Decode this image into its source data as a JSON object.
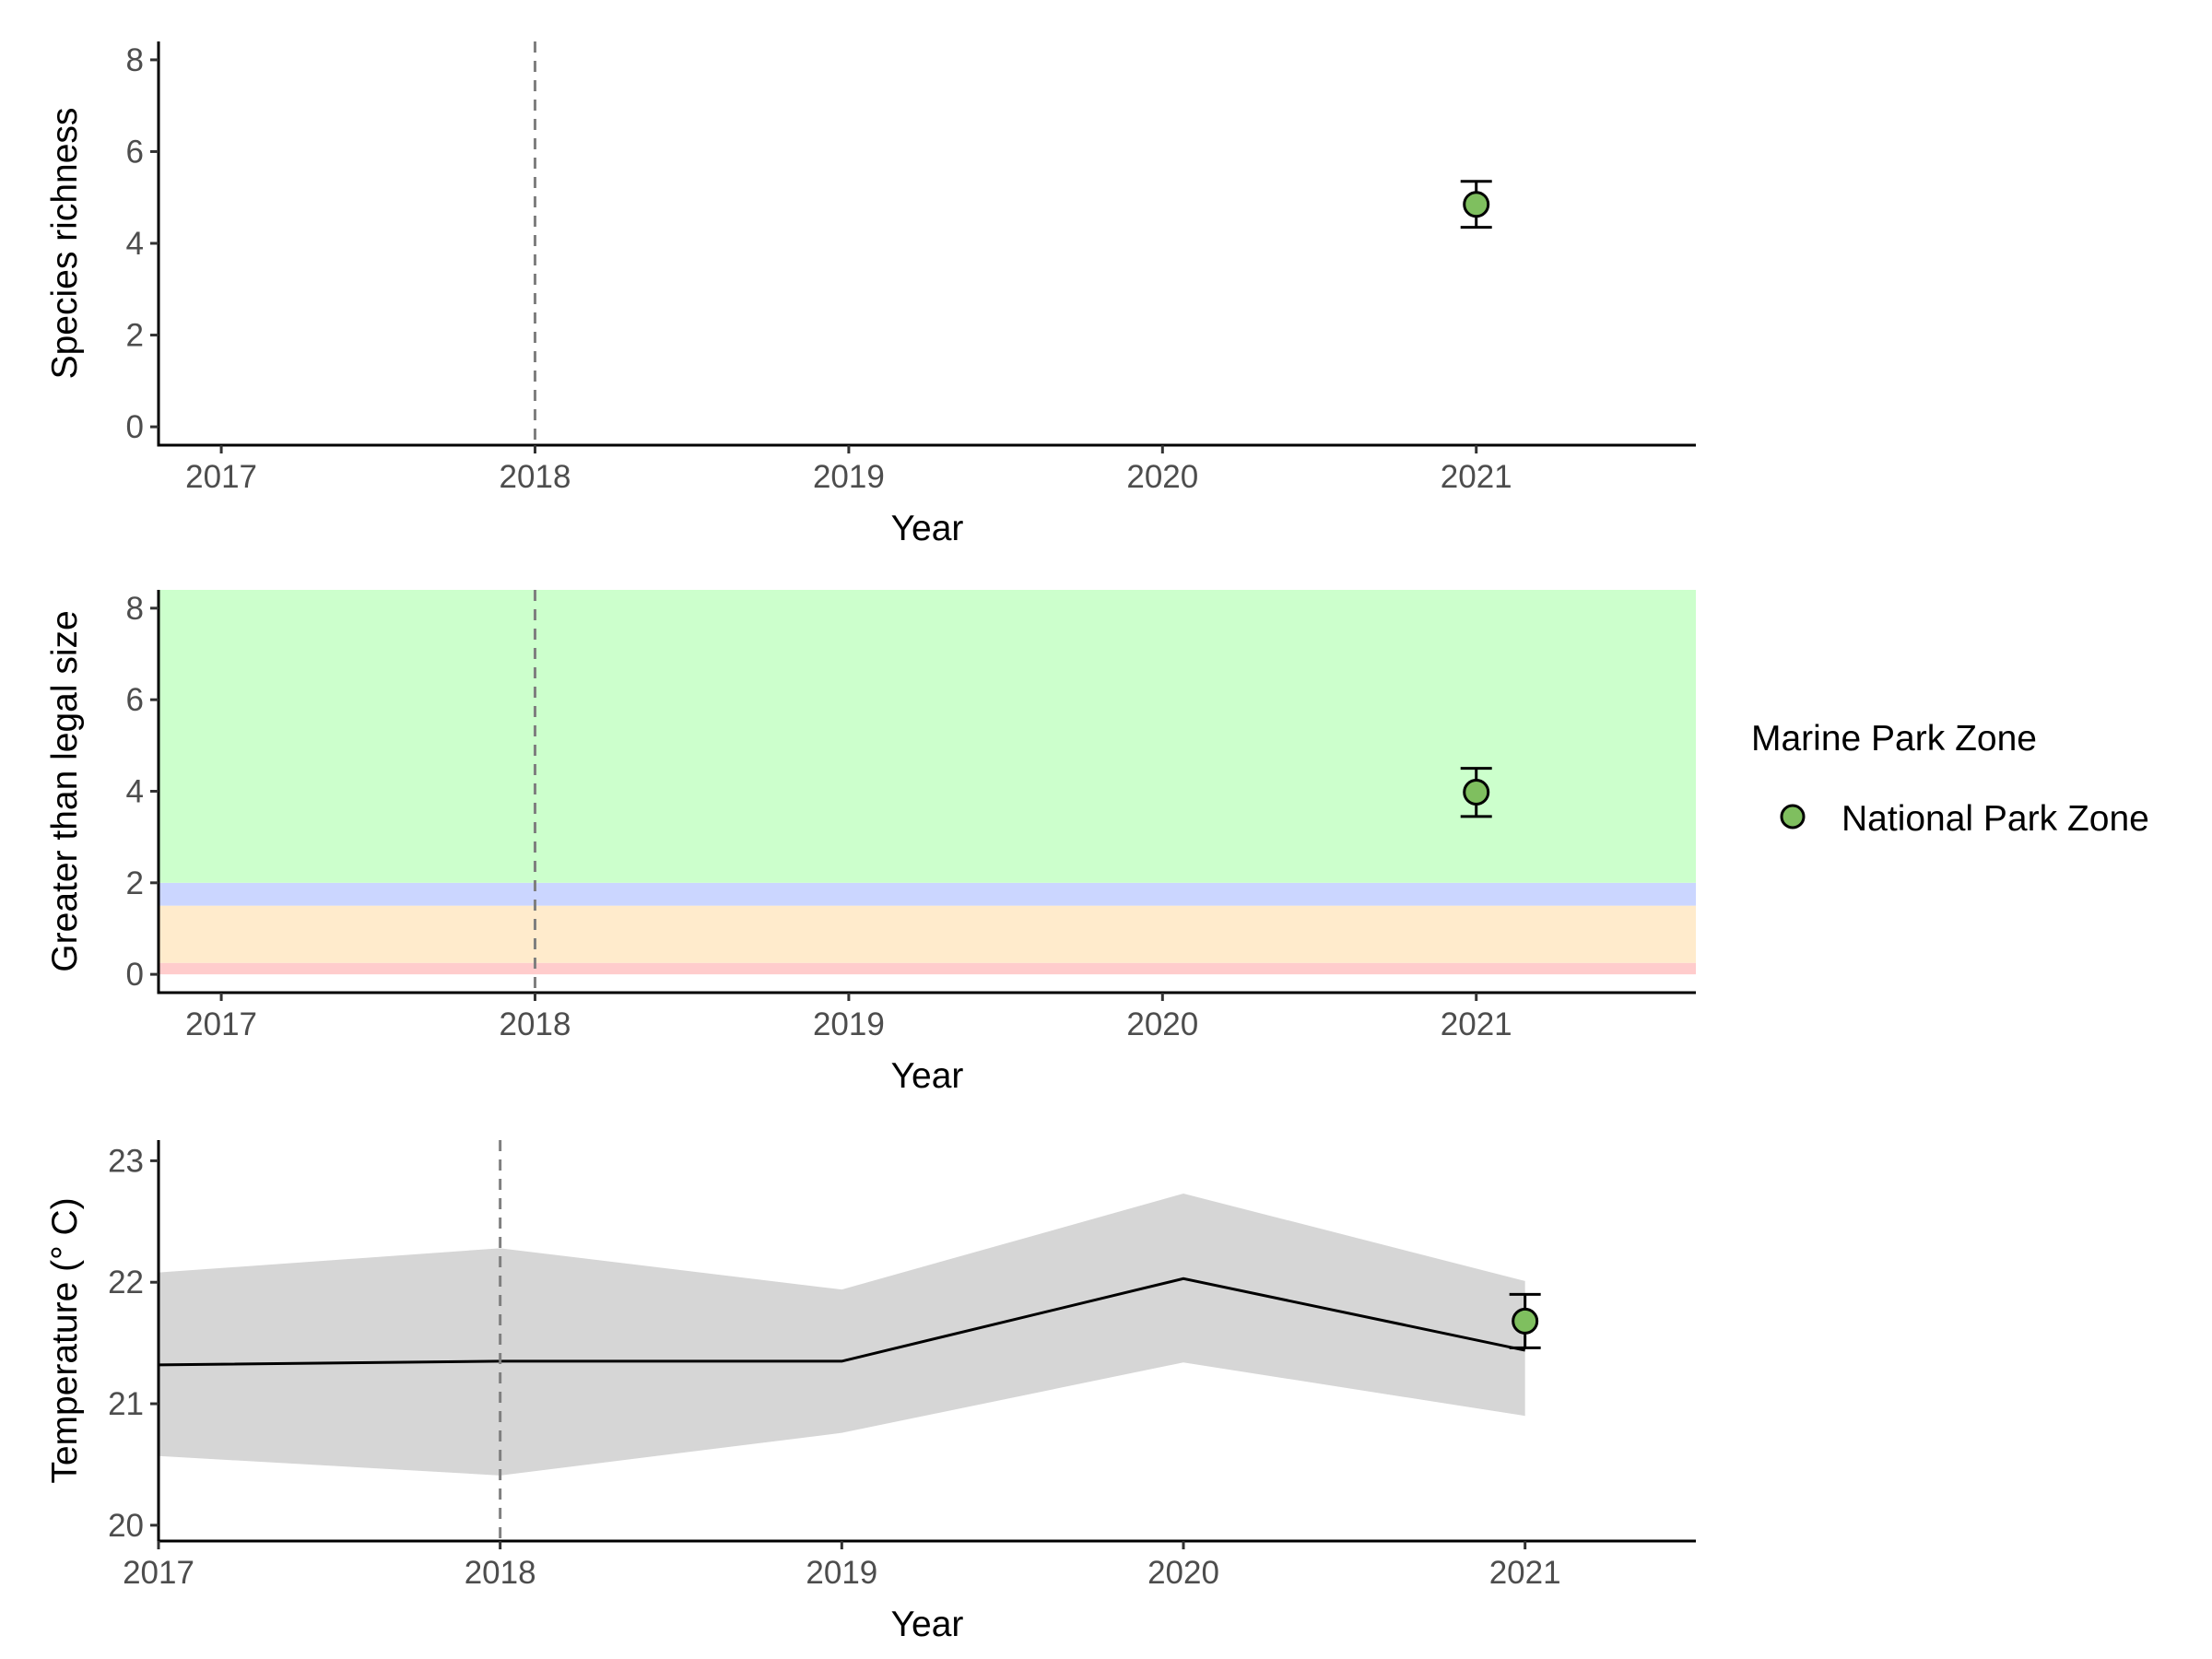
{
  "chart_data": [
    {
      "type": "scatter",
      "xlabel": "Year",
      "ylabel": "Species richness",
      "xlim": [
        2016.8,
        2021.7
      ],
      "ylim": [
        -0.4,
        8.4
      ],
      "x_ticks": [
        2017,
        2018,
        2019,
        2020,
        2021
      ],
      "y_ticks": [
        0,
        2,
        4,
        6,
        8
      ],
      "reference_line_x": 2018,
      "series": [
        {
          "name": "National Park Zone",
          "x": [
            2021
          ],
          "y": [
            4.85
          ],
          "ymin": [
            4.35
          ],
          "ymax": [
            5.35
          ]
        }
      ]
    },
    {
      "type": "scatter",
      "xlabel": "Year",
      "ylabel": "Greater than legal size",
      "xlim": [
        2016.8,
        2021.7
      ],
      "ylim": [
        -0.4,
        8.4
      ],
      "x_ticks": [
        2017,
        2018,
        2019,
        2020,
        2021
      ],
      "y_ticks": [
        0,
        2,
        4,
        6,
        8
      ],
      "reference_line_x": 2018,
      "bands": [
        {
          "ymin": 0,
          "ymax": 0.25,
          "color": "#ffcccc"
        },
        {
          "ymin": 0.25,
          "ymax": 1.5,
          "color": "#ffebcc"
        },
        {
          "ymin": 1.5,
          "ymax": 2.0,
          "color": "#cbd6ff"
        },
        {
          "ymin": 2.0,
          "ymax": 8.4,
          "color": "#ccffcc"
        }
      ],
      "series": [
        {
          "name": "National Park Zone",
          "x": [
            2021
          ],
          "y": [
            3.98
          ],
          "ymin": [
            3.45
          ],
          "ymax": [
            4.5
          ]
        }
      ]
    },
    {
      "type": "line",
      "xlabel": "Year",
      "ylabel": "Temperature (° C)",
      "xlim": [
        2017,
        2021.5
      ],
      "ylim": [
        19.87,
        23.17
      ],
      "x_ticks": [
        2017,
        2018,
        2019,
        2020,
        2021
      ],
      "y_ticks": [
        20,
        21,
        22,
        23
      ],
      "reference_line_x": 2018,
      "ribbon": {
        "x": [
          2017,
          2018,
          2019,
          2020,
          2021
        ],
        "ymin": [
          20.57,
          20.41,
          20.76,
          21.34,
          20.9
        ],
        "ymax": [
          22.08,
          22.28,
          21.94,
          22.73,
          22.01
        ],
        "color": "#d6d6d6"
      },
      "line": {
        "x": [
          2017,
          2018,
          2019,
          2020,
          2021
        ],
        "y": [
          21.32,
          21.35,
          21.35,
          22.03,
          21.44
        ]
      },
      "series": [
        {
          "name": "National Park Zone",
          "x": [
            2021
          ],
          "y": [
            21.68
          ],
          "ymin": [
            21.46
          ],
          "ymax": [
            21.9
          ]
        }
      ]
    }
  ],
  "legend": {
    "title": "Marine Park Zone",
    "items": [
      {
        "label": "National Park Zone",
        "color": "#7fbf5f"
      }
    ]
  },
  "colors": {
    "point_fill": "#7fbf5f",
    "reference_line": "#7f7f7f"
  }
}
